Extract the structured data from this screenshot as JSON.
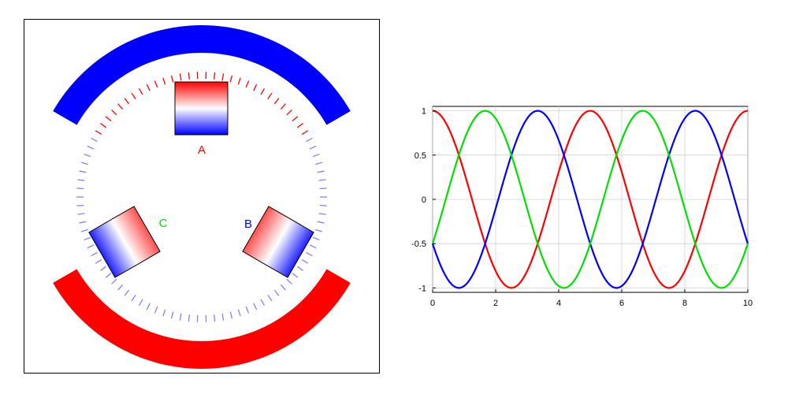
{
  "diagram": {
    "coils": [
      {
        "id": "A",
        "label": "A",
        "color": "#ff0000"
      },
      {
        "id": "B",
        "label": "B",
        "color": "#0000ff"
      },
      {
        "id": "C",
        "label": "C",
        "color": "#00e000"
      }
    ],
    "stator_top_color": "#0000ff",
    "stator_bottom_color": "#ff0000",
    "rim_red": "#ff0000",
    "rim_blue": "#8080ff"
  },
  "chart_data": {
    "type": "line",
    "title": "",
    "xlabel": "",
    "ylabel": "",
    "xlim": [
      0,
      10
    ],
    "ylim": [
      -1.05,
      1.05
    ],
    "grid": true,
    "x_ticks": [
      "0",
      "2",
      "4",
      "6",
      "8",
      "10"
    ],
    "y_ticks": [
      "1",
      "0.5",
      "0",
      "-0.5",
      "-1"
    ],
    "series": [
      {
        "color": "#ff0000",
        "formula": "cos(2*pi*x/5)",
        "x": [
          0,
          1.25,
          2.5,
          3.75,
          5,
          6.25,
          7.5,
          8.75,
          10
        ],
        "values": [
          1,
          0,
          -1,
          0,
          1,
          0,
          -1,
          0,
          1
        ]
      },
      {
        "color": "#0000ff",
        "formula": "cos(2*pi*x/5 + 2*pi/3)",
        "x": [
          0,
          0.833,
          3.333,
          5.833,
          8.333,
          10
        ],
        "values": [
          -0.5,
          -1,
          1,
          -1,
          1,
          -0.5
        ]
      },
      {
        "color": "#00e000",
        "formula": "cos(2*pi*x/5 - 2*pi/3)",
        "x": [
          0,
          1.667,
          4.167,
          6.667,
          9.167,
          10
        ],
        "values": [
          -0.5,
          1,
          -1,
          1,
          -1,
          -0.5
        ]
      }
    ]
  }
}
